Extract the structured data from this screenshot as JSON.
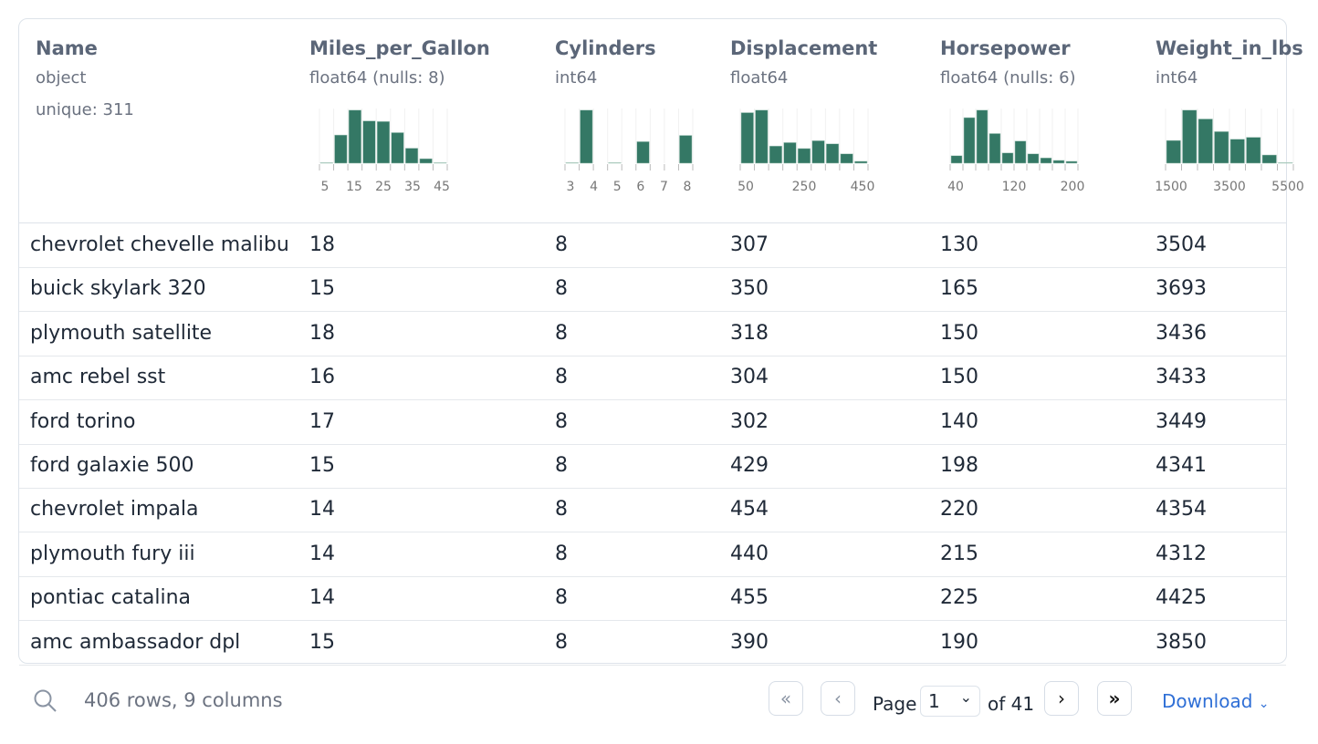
{
  "columns": [
    {
      "name": "Name",
      "type": "object",
      "unique": "unique: 311"
    },
    {
      "name": "Miles_per_Gallon",
      "type": "float64  (nulls: 8)",
      "hist": [
        2,
        94,
        177,
        141,
        139,
        102,
        50,
        15,
        2
      ],
      "ticks": [
        "5",
        "15",
        "25",
        "35",
        "45"
      ]
    },
    {
      "name": "Cylinders",
      "type": "int64",
      "hist": [
        2,
        170,
        0,
        2,
        0,
        69,
        0,
        0,
        89
      ],
      "ticks": [
        "3",
        "4",
        "5",
        "6",
        "7",
        "8"
      ]
    },
    {
      "name": "Displacement",
      "type": "float64",
      "hist": [
        162,
        170,
        55,
        66,
        47,
        72,
        62,
        30,
        6
      ],
      "ticks": [
        "50",
        "250",
        "450"
      ]
    },
    {
      "name": "Horsepower",
      "type": "float64  (nulls: 6)",
      "hist": [
        24,
        146,
        170,
        95,
        33,
        71,
        30,
        17,
        9,
        6
      ],
      "ticks": [
        "40",
        "120",
        "200"
      ]
    },
    {
      "name": "Weight_in_lbs",
      "type": "int64",
      "hist": [
        72,
        168,
        140,
        100,
        76,
        82,
        26,
        2
      ],
      "ticks": [
        "1500",
        "3500",
        "5500"
      ]
    }
  ],
  "rows": [
    [
      "chevrolet chevelle malibu",
      "18",
      "8",
      "307",
      "130",
      "3504"
    ],
    [
      "buick skylark 320",
      "15",
      "8",
      "350",
      "165",
      "3693"
    ],
    [
      "plymouth satellite",
      "18",
      "8",
      "318",
      "150",
      "3436"
    ],
    [
      "amc rebel sst",
      "16",
      "8",
      "304",
      "150",
      "3433"
    ],
    [
      "ford torino",
      "17",
      "8",
      "302",
      "140",
      "3449"
    ],
    [
      "ford galaxie 500",
      "15",
      "8",
      "429",
      "198",
      "4341"
    ],
    [
      "chevrolet impala",
      "14",
      "8",
      "454",
      "220",
      "4354"
    ],
    [
      "plymouth fury iii",
      "14",
      "8",
      "440",
      "215",
      "4312"
    ],
    [
      "pontiac catalina",
      "14",
      "8",
      "455",
      "225",
      "4425"
    ],
    [
      "amc ambassador dpl",
      "15",
      "8",
      "390",
      "190",
      "3850"
    ]
  ],
  "footer": {
    "summary": "406 rows, 9 columns",
    "page_label": "Page",
    "page_value": "1",
    "of_label": "of 41",
    "download": "Download"
  },
  "colors": {
    "bar": "#347865",
    "accent": "#2f6fd6"
  }
}
